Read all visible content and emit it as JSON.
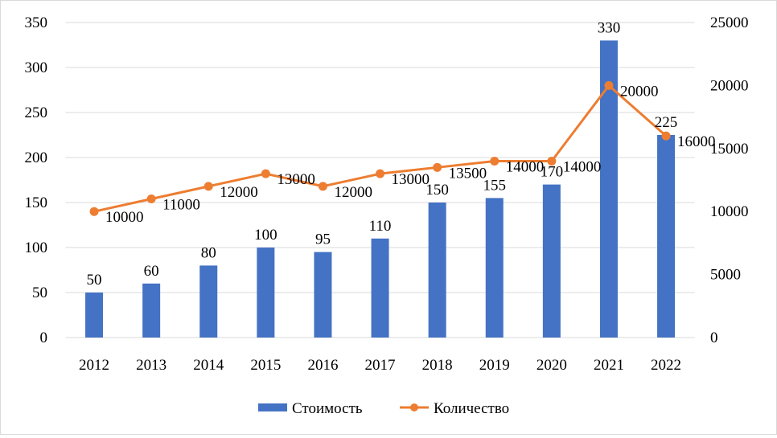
{
  "chart_data": {
    "type": "bar+line",
    "categories": [
      "2012",
      "2013",
      "2014",
      "2015",
      "2016",
      "2017",
      "2018",
      "2019",
      "2020",
      "2021",
      "2022"
    ],
    "series": [
      {
        "name": "Стоимость",
        "type": "bar",
        "axis": "left",
        "color": "#4472c4",
        "values": [
          50,
          60,
          80,
          100,
          95,
          110,
          150,
          155,
          170,
          330,
          225
        ]
      },
      {
        "name": "Количество",
        "type": "line",
        "axis": "right",
        "color": "#ed7d31",
        "values": [
          10000,
          11000,
          12000,
          13000,
          12000,
          13000,
          13500,
          14000,
          14000,
          20000,
          16000
        ]
      }
    ],
    "y_left": {
      "min": 0,
      "max": 350,
      "step": 50,
      "ticks": [
        "0",
        "50",
        "100",
        "150",
        "200",
        "250",
        "300",
        "350"
      ]
    },
    "y_right": {
      "min": 0,
      "max": 25000,
      "step": 5000,
      "ticks": [
        "0",
        "5000",
        "10000",
        "15000",
        "20000",
        "25000"
      ]
    },
    "grid": true,
    "legend": {
      "position": "bottom",
      "entries": [
        "Стоимость",
        "Количество"
      ]
    },
    "gridline_color": "#d9d9d9"
  }
}
